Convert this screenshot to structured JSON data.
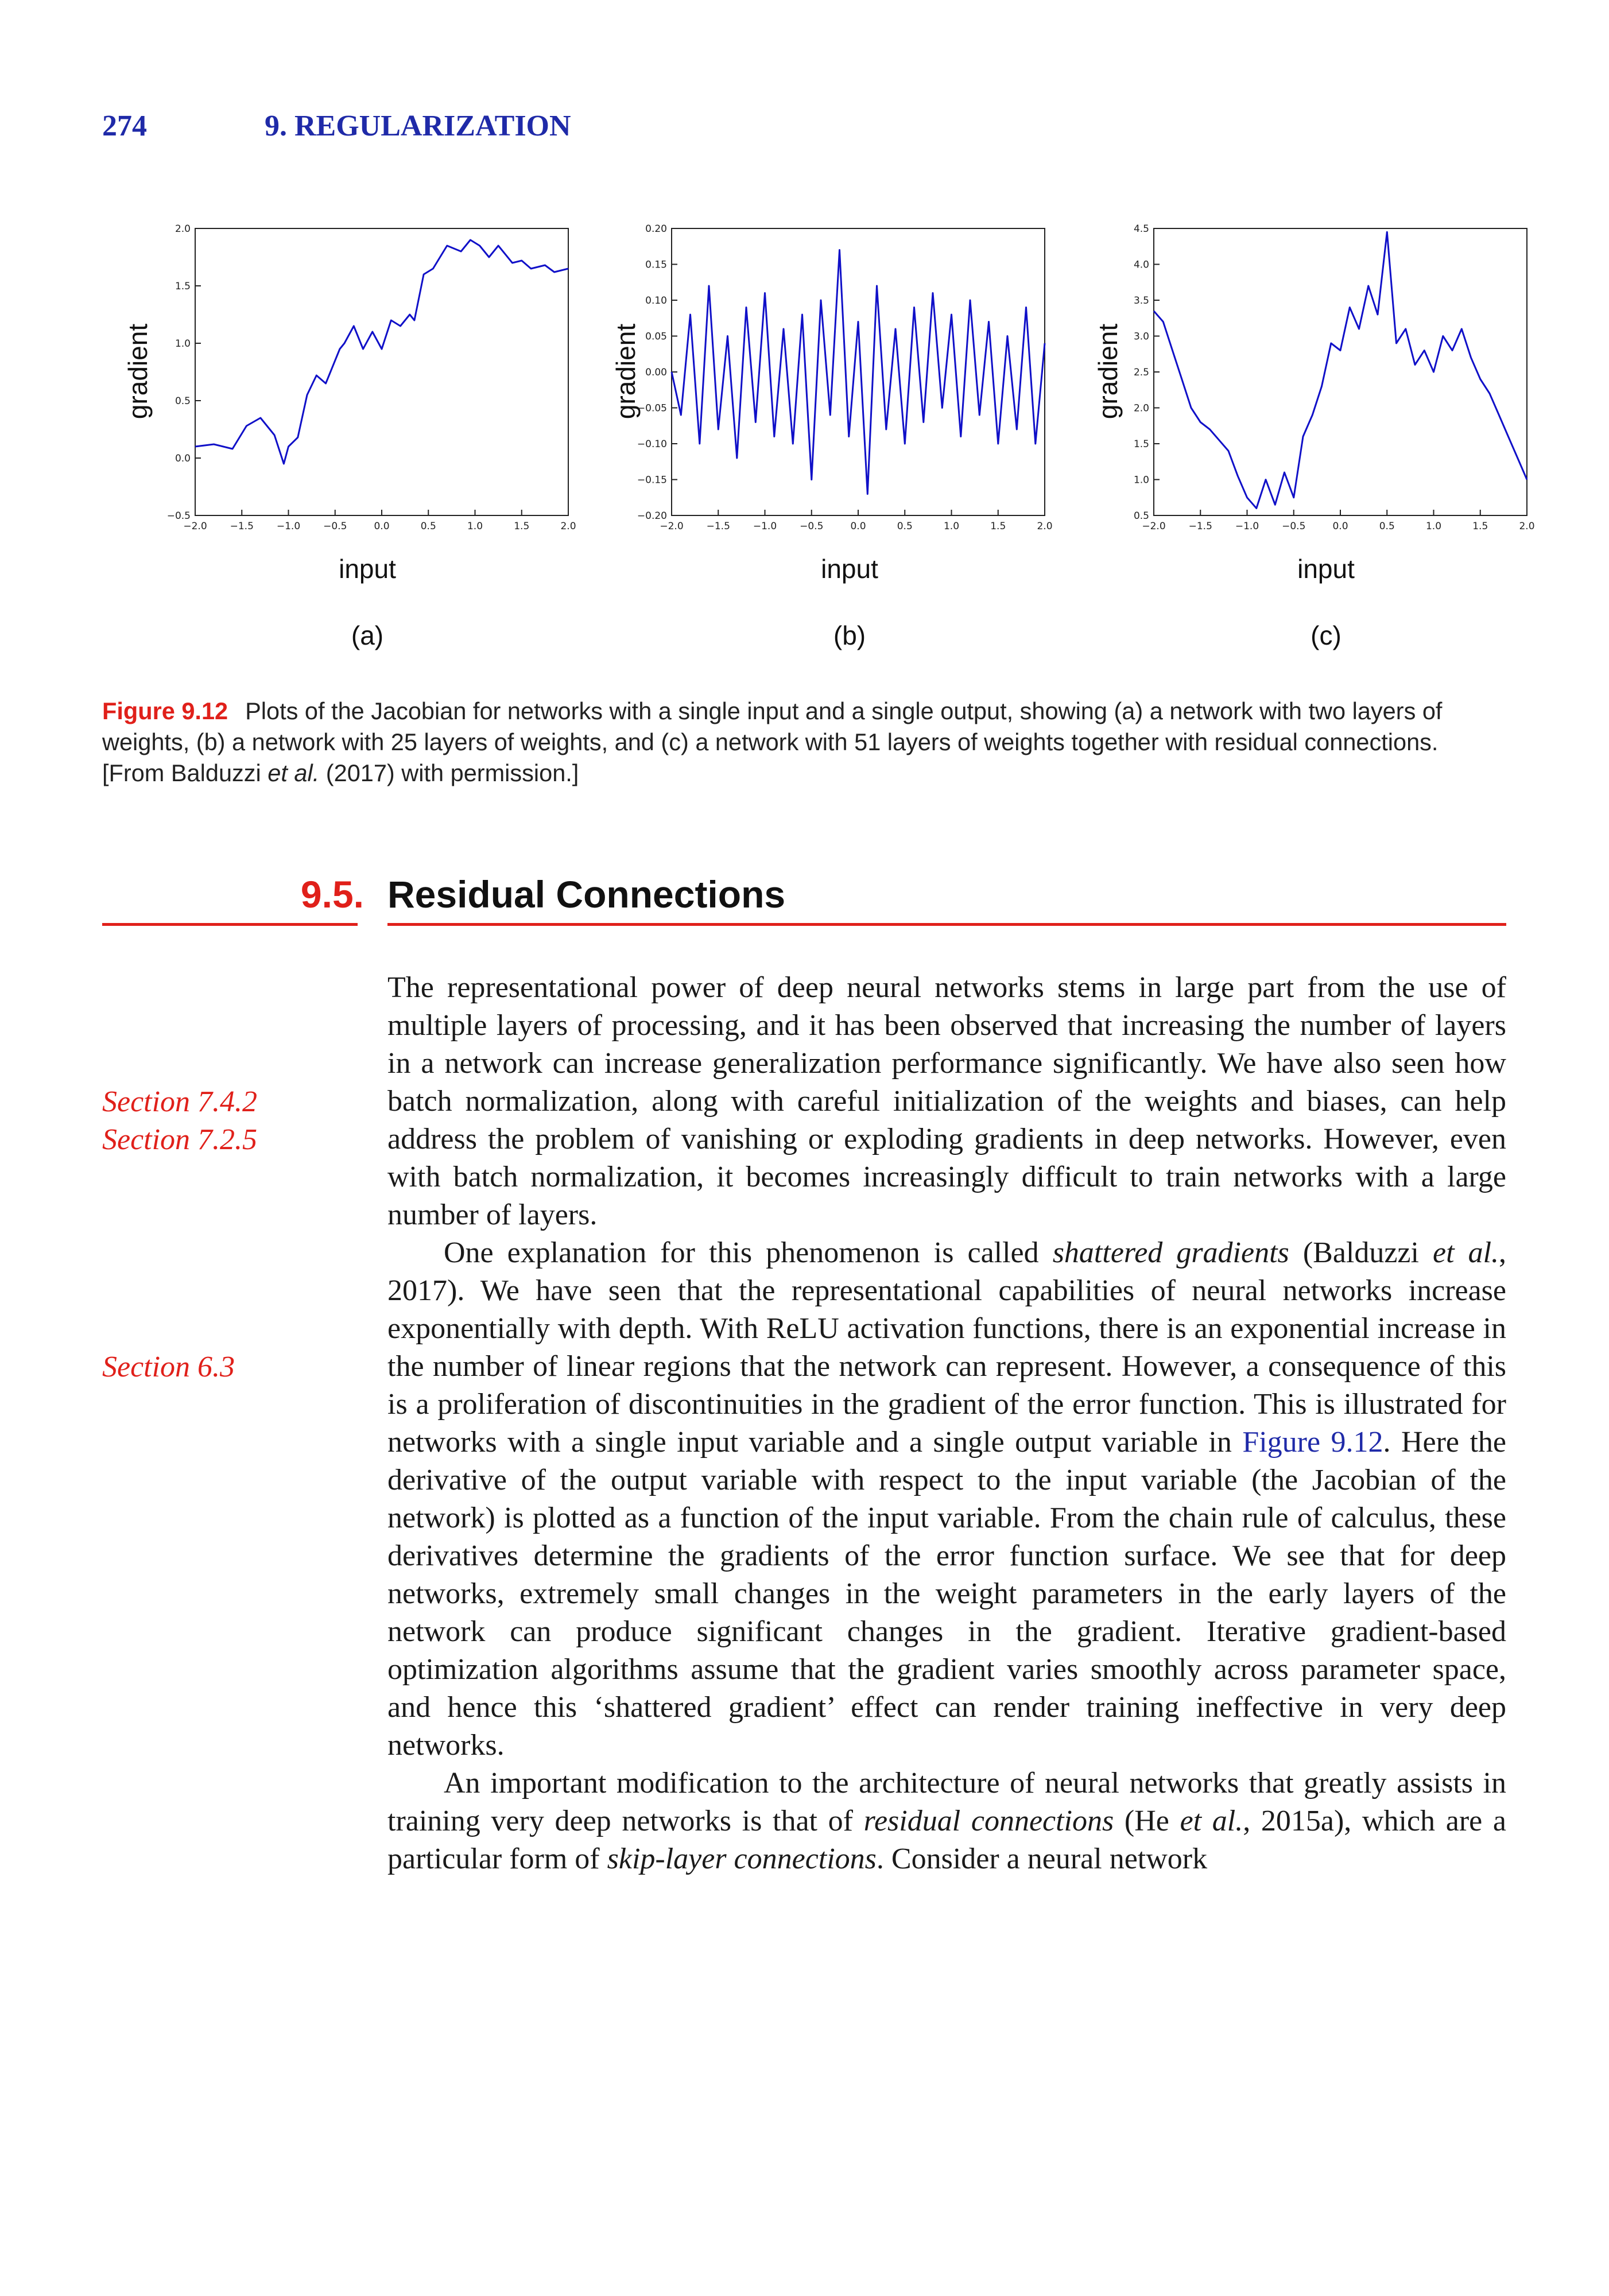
{
  "header": {
    "page_number": "274",
    "chapter": "9. REGULARIZATION"
  },
  "figure": {
    "panels": [
      {
        "sublabel": "(a)",
        "xlabel": "input",
        "ylabel": "gradient",
        "color": "#1010c8",
        "chart_data": {
          "type": "line",
          "xlim": [
            -2.0,
            2.0
          ],
          "ylim": [
            -0.5,
            2.0
          ],
          "xticks": [
            "−2.0",
            "−1.5",
            "−1.0",
            "−0.5",
            "0.0",
            "0.5",
            "1.0",
            "1.5",
            "2.0"
          ],
          "yticks": [
            "−0.5",
            "0.0",
            "0.5",
            "1.0",
            "1.5",
            "2.0"
          ],
          "x": [
            -2.0,
            -1.8,
            -1.6,
            -1.45,
            -1.3,
            -1.15,
            -1.05,
            -1.0,
            -0.9,
            -0.8,
            -0.7,
            -0.6,
            -0.45,
            -0.4,
            -0.3,
            -0.2,
            -0.1,
            0.0,
            0.1,
            0.2,
            0.3,
            0.35,
            0.45,
            0.55,
            0.7,
            0.85,
            0.95,
            1.05,
            1.15,
            1.25,
            1.4,
            1.5,
            1.6,
            1.75,
            1.85,
            2.0
          ],
          "y": [
            0.1,
            0.12,
            0.08,
            0.28,
            0.35,
            0.2,
            -0.05,
            0.1,
            0.18,
            0.55,
            0.72,
            0.65,
            0.95,
            1.0,
            1.15,
            0.95,
            1.1,
            0.95,
            1.2,
            1.15,
            1.25,
            1.2,
            1.6,
            1.65,
            1.85,
            1.8,
            1.9,
            1.85,
            1.75,
            1.85,
            1.7,
            1.72,
            1.65,
            1.68,
            1.62,
            1.65
          ]
        }
      },
      {
        "sublabel": "(b)",
        "xlabel": "input",
        "ylabel": "gradient",
        "color": "#1010c8",
        "chart_data": {
          "type": "line",
          "xlim": [
            -2.0,
            2.0
          ],
          "ylim": [
            -0.2,
            0.2
          ],
          "xticks": [
            "−2.0",
            "−1.5",
            "−1.0",
            "−0.5",
            "0.0",
            "0.5",
            "1.0",
            "1.5",
            "2.0"
          ],
          "yticks": [
            "−0.20",
            "−0.15",
            "−0.10",
            "−0.05",
            "0.00",
            "0.05",
            "0.10",
            "0.15",
            "0.20"
          ],
          "x": [
            -2.0,
            -1.9,
            -1.8,
            -1.7,
            -1.6,
            -1.5,
            -1.4,
            -1.3,
            -1.2,
            -1.1,
            -1.0,
            -0.9,
            -0.8,
            -0.7,
            -0.6,
            -0.5,
            -0.4,
            -0.3,
            -0.2,
            -0.1,
            0.0,
            0.1,
            0.2,
            0.3,
            0.4,
            0.5,
            0.6,
            0.7,
            0.8,
            0.9,
            1.0,
            1.1,
            1.2,
            1.3,
            1.4,
            1.5,
            1.6,
            1.7,
            1.8,
            1.9,
            2.0
          ],
          "y": [
            0.0,
            -0.06,
            0.08,
            -0.1,
            0.12,
            -0.08,
            0.05,
            -0.12,
            0.09,
            -0.07,
            0.11,
            -0.09,
            0.06,
            -0.1,
            0.08,
            -0.15,
            0.1,
            -0.06,
            0.17,
            -0.09,
            0.07,
            -0.17,
            0.12,
            -0.08,
            0.06,
            -0.1,
            0.09,
            -0.07,
            0.11,
            -0.05,
            0.08,
            -0.09,
            0.1,
            -0.06,
            0.07,
            -0.1,
            0.05,
            -0.08,
            0.09,
            -0.1,
            0.04
          ]
        }
      },
      {
        "sublabel": "(c)",
        "xlabel": "input",
        "ylabel": "gradient",
        "color": "#1010c8",
        "chart_data": {
          "type": "line",
          "xlim": [
            -2.0,
            2.0
          ],
          "ylim": [
            0.5,
            4.5
          ],
          "xticks": [
            "−2.0",
            "−1.5",
            "−1.0",
            "−0.5",
            "0.0",
            "0.5",
            "1.0",
            "1.5",
            "2.0"
          ],
          "yticks": [
            "0.5",
            "1.0",
            "1.5",
            "2.0",
            "2.5",
            "3.0",
            "3.5",
            "4.0",
            "4.5"
          ],
          "x": [
            -2.0,
            -1.9,
            -1.8,
            -1.7,
            -1.6,
            -1.5,
            -1.4,
            -1.3,
            -1.2,
            -1.1,
            -1.0,
            -0.9,
            -0.8,
            -0.7,
            -0.6,
            -0.5,
            -0.4,
            -0.3,
            -0.2,
            -0.1,
            0.0,
            0.1,
            0.2,
            0.3,
            0.4,
            0.5,
            0.6,
            0.7,
            0.8,
            0.9,
            1.0,
            1.1,
            1.2,
            1.3,
            1.4,
            1.5,
            1.6,
            1.7,
            1.8,
            1.9,
            2.0
          ],
          "y": [
            3.35,
            3.2,
            2.8,
            2.4,
            2.0,
            1.8,
            1.7,
            1.55,
            1.4,
            1.05,
            0.75,
            0.6,
            1.0,
            0.65,
            1.1,
            0.75,
            1.6,
            1.9,
            2.3,
            2.9,
            2.8,
            3.4,
            3.1,
            3.7,
            3.3,
            4.45,
            2.9,
            3.1,
            2.6,
            2.8,
            2.5,
            3.0,
            2.8,
            3.1,
            2.7,
            2.4,
            2.2,
            1.9,
            1.6,
            1.3,
            1.0
          ]
        }
      }
    ],
    "caption": {
      "id": "Figure 9.12",
      "text_1": "Plots of the Jacobian for networks with a single input and a single output, showing (a) a network with two layers of weights, (b) a network with 25 layers of weights, and (c) a network with 51 layers of weights together with residual connections. [From Balduzzi ",
      "text_italic": "et al.",
      "text_2": " (2017) with permission.]"
    }
  },
  "section": {
    "number": "9.5.",
    "title": "Residual Connections"
  },
  "margin_notes": [
    "Section 7.4.2",
    "Section 7.2.5",
    "Section 6.3"
  ],
  "body": {
    "p1": "The representational power of deep neural networks stems in large part from the use of multiple layers of processing, and it has been observed that increasing the number of layers in a network can increase generalization performance significantly. We have also seen how batch normalization, along with careful initialization of the weights and biases, can help address the problem of vanishing or exploding gradients in deep networks. However, even with batch normalization, it becomes increasingly difficult to train networks with a large number of layers.",
    "p2_a": "One explanation for this phenomenon is called ",
    "p2_term": "shattered gradients",
    "p2_b": " (Balduzzi ",
    "p2_etal": "et al.",
    "p2_c": ", 2017). We have seen that the representational capabilities of neural networks increase exponentially with depth. With ReLU activation functions, there is an exponential increase in the number of linear regions that the network can represent. However, a consequence of this is a proliferation of discontinuities in the gradient of the error function. This is illustrated for networks with a single input variable and a single output variable in ",
    "p2_xref": "Figure 9.12",
    "p2_d": ". Here the derivative of the output variable with respect to the input variable (the Jacobian of the network) is plotted as a function of the input variable. From the chain rule of calculus, these derivatives determine the gradients of the error function surface. We see that for deep networks, extremely small changes in the weight parameters in the early layers of the network can produce significant changes in the gradient. Iterative gradient-based optimization algorithms assume that the gradient varies smoothly across parameter space, and hence this ‘shattered gradient’ effect can render training ineffective in very deep networks.",
    "p3_a": "An important modification to the architecture of neural networks that greatly assists in training very deep networks is that of ",
    "p3_term": "residual connections",
    "p3_b": " (He ",
    "p3_etal": "et al.",
    "p3_c": ", 2015a), which are a particular form of ",
    "p3_term2": "skip-layer connections",
    "p3_d": ". Consider a neural network"
  }
}
